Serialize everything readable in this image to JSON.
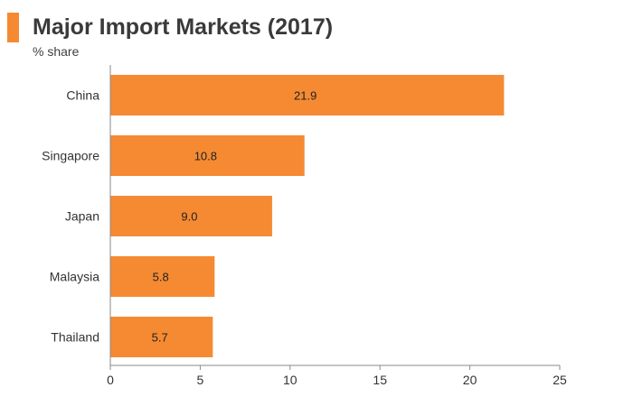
{
  "header": {
    "title": "Major Import Markets (2017)",
    "subtitle": "% share",
    "accent_color": "#f58a33"
  },
  "chart_data": {
    "type": "bar",
    "orientation": "horizontal",
    "title": "Major Import Markets (2017)",
    "ylabel": "% share",
    "xlabel": "",
    "categories": [
      "China",
      "Singapore",
      "Japan",
      "Malaysia",
      "Thailand"
    ],
    "values": [
      21.9,
      10.8,
      9.0,
      5.8,
      5.7
    ],
    "value_labels": [
      "21.9",
      "10.8",
      "9.0",
      "5.8",
      "5.7"
    ],
    "xlim": [
      0,
      25
    ],
    "xticks": [
      0,
      5,
      10,
      15,
      20,
      25
    ],
    "xtick_labels": [
      "0",
      "5",
      "10",
      "15",
      "20",
      "25"
    ],
    "bar_color": "#f58a33",
    "grid": false,
    "legend": "none"
  }
}
